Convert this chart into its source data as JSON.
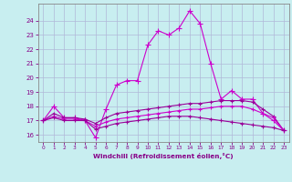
{
  "xlabel": "Windchill (Refroidissement éolien,°C)",
  "xlim": [
    -0.5,
    23.5
  ],
  "ylim": [
    15.5,
    25.2
  ],
  "yticks": [
    16,
    17,
    18,
    19,
    20,
    21,
    22,
    23,
    24
  ],
  "xticks": [
    0,
    1,
    2,
    3,
    4,
    5,
    6,
    7,
    8,
    9,
    10,
    11,
    12,
    13,
    14,
    15,
    16,
    17,
    18,
    19,
    20,
    21,
    22,
    23
  ],
  "bg_color": "#c8eef0",
  "grid_color": "#b0b8d8",
  "line_colors": [
    "#cc00cc",
    "#990099",
    "#cc00cc",
    "#990099"
  ],
  "lines": [
    [
      17.0,
      18.0,
      17.2,
      17.2,
      17.0,
      15.8,
      17.8,
      19.5,
      19.8,
      19.8,
      22.3,
      23.3,
      23.0,
      23.5,
      24.7,
      23.8,
      21.0,
      18.5,
      19.1,
      18.5,
      18.5,
      17.5,
      17.0,
      16.3
    ],
    [
      17.0,
      17.5,
      17.2,
      17.2,
      17.1,
      16.8,
      17.2,
      17.5,
      17.6,
      17.7,
      17.8,
      17.9,
      18.0,
      18.1,
      18.2,
      18.2,
      18.3,
      18.4,
      18.4,
      18.4,
      18.3,
      17.8,
      17.3,
      16.3
    ],
    [
      17.0,
      17.3,
      17.1,
      17.1,
      17.0,
      16.6,
      16.9,
      17.1,
      17.2,
      17.3,
      17.4,
      17.5,
      17.6,
      17.7,
      17.8,
      17.8,
      17.9,
      18.0,
      18.0,
      18.0,
      17.8,
      17.5,
      17.2,
      16.3
    ],
    [
      17.0,
      17.2,
      17.0,
      17.0,
      17.0,
      16.4,
      16.6,
      16.8,
      16.9,
      17.0,
      17.1,
      17.2,
      17.3,
      17.3,
      17.3,
      17.2,
      17.1,
      17.0,
      16.9,
      16.8,
      16.7,
      16.6,
      16.5,
      16.3
    ]
  ],
  "markers": [
    "+",
    "+",
    "+",
    "+"
  ],
  "linewidths": [
    0.8,
    0.8,
    0.8,
    0.8
  ],
  "markersizes": [
    4,
    3,
    3,
    3
  ]
}
